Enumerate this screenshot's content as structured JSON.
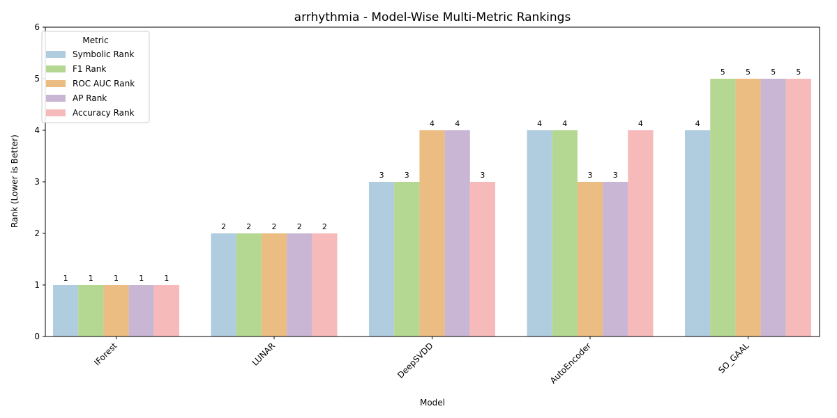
{
  "chart_data": {
    "type": "bar",
    "title": "arrhythmia - Model-Wise Multi-Metric Rankings",
    "xlabel": "Model",
    "ylabel": "Rank (Lower is Better)",
    "ylim": [
      0,
      6
    ],
    "yticks": [
      0,
      1,
      2,
      3,
      4,
      5,
      6
    ],
    "categories": [
      "IForest",
      "LUNAR",
      "DeepSVDD",
      "AutoEncoder",
      "SO_GAAL"
    ],
    "legend": {
      "title": "Metric",
      "placement": "upper-left"
    },
    "grid": false,
    "series": [
      {
        "name": "Symbolic Rank",
        "color": "#b0cde0",
        "values": [
          1,
          2,
          3,
          4,
          4
        ]
      },
      {
        "name": "F1 Rank",
        "color": "#b4d792",
        "values": [
          1,
          2,
          3,
          4,
          5
        ]
      },
      {
        "name": "ROC AUC Rank",
        "color": "#ebbd82",
        "values": [
          1,
          2,
          4,
          3,
          5
        ]
      },
      {
        "name": "AP Rank",
        "color": "#c9b6d4",
        "values": [
          1,
          2,
          4,
          3,
          5
        ]
      },
      {
        "name": "Accuracy Rank",
        "color": "#f6baba",
        "values": [
          1,
          2,
          3,
          4,
          5
        ]
      }
    ]
  }
}
